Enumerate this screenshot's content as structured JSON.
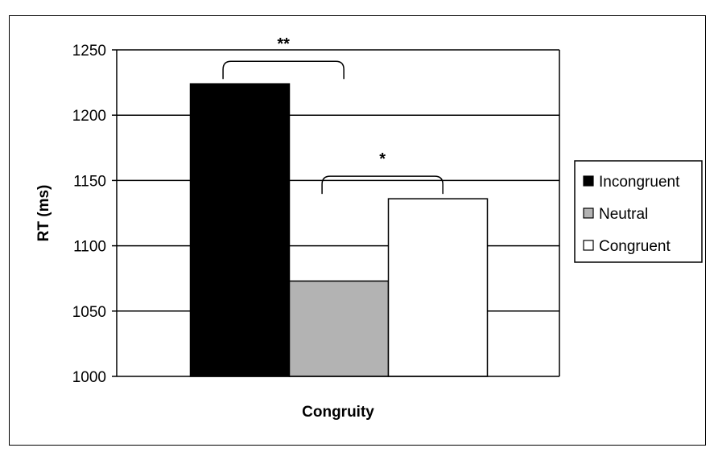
{
  "chart_data": {
    "type": "bar",
    "title": "",
    "xlabel": "Congruity",
    "ylabel": "RT (ms)",
    "ylim": [
      1000,
      1250
    ],
    "yticks": [
      "1000",
      "1050",
      "1100",
      "1150",
      "1200",
      "1250"
    ],
    "grid": true,
    "legend_position": "right",
    "series": [
      {
        "name": "Incongruent",
        "values": [
          1224
        ],
        "color": "#000000"
      },
      {
        "name": "Neutral",
        "values": [
          1073
        ],
        "color": "#b3b3b3"
      },
      {
        "name": "Congruent",
        "values": [
          1136
        ],
        "color": "#ffffff"
      }
    ],
    "annotations": [
      {
        "label": "**",
        "from": "Incongruent",
        "to": "Neutral"
      },
      {
        "label": "*",
        "from": "Neutral",
        "to": "Congruent"
      }
    ]
  }
}
